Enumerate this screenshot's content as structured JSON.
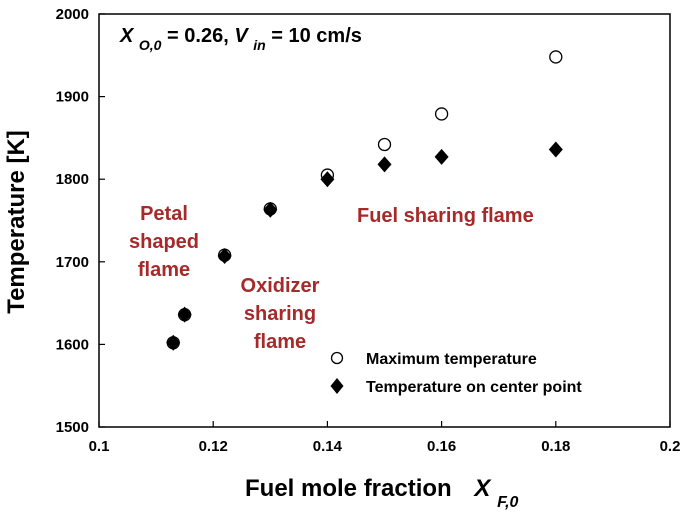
{
  "chart_data": {
    "type": "scatter",
    "xlabel": "Fuel mole fraction",
    "xlabel_var": "X",
    "xlabel_sub": "F,0",
    "ylabel": "Temperature [K]",
    "xlim": [
      0.1,
      0.2
    ],
    "ylim": [
      1500,
      2000
    ],
    "xticks": [
      0.1,
      0.12,
      0.14,
      0.16,
      0.18,
      0.2
    ],
    "xtick_labels": [
      "0.1",
      "0.12",
      "0.14",
      "0.16",
      "0.18",
      "0.2"
    ],
    "yticks": [
      1500,
      1600,
      1700,
      1800,
      1900,
      2000
    ],
    "ytick_labels": [
      "1500",
      "1600",
      "1700",
      "1800",
      "1900",
      "2000"
    ],
    "grid": false,
    "legend_position": "bottom-right",
    "condition": {
      "var1": "X",
      "sub1": "O,0",
      "mid": " = 0.26, ",
      "var2": "V",
      "sub2": "in",
      "tail": " = 10 cm/s"
    },
    "series": [
      {
        "name": "Maximum temperature",
        "marker": "open-circle",
        "color": "#000000",
        "x": [
          0.113,
          0.115,
          0.122,
          0.13,
          0.14,
          0.15,
          0.16,
          0.18
        ],
        "y": [
          1602,
          1636,
          1708,
          1764,
          1805,
          1842,
          1879,
          1948
        ]
      },
      {
        "name": "Temperature on center point",
        "marker": "filled-diamond",
        "color": "#000000",
        "x": [
          0.113,
          0.115,
          0.122,
          0.13,
          0.14,
          0.15,
          0.16,
          0.18
        ],
        "y": [
          1602,
          1636,
          1707,
          1763,
          1800,
          1818,
          1827,
          1836
        ]
      }
    ],
    "annotations": [
      {
        "lines": [
          "Petal",
          "shaped",
          "flame"
        ],
        "color": "#a52a2a"
      },
      {
        "lines": [
          "Oxidizer",
          "sharing",
          "flame"
        ],
        "color": "#a52a2a"
      },
      {
        "lines": [
          "Fuel sharing flame"
        ],
        "color": "#a52a2a"
      }
    ]
  }
}
